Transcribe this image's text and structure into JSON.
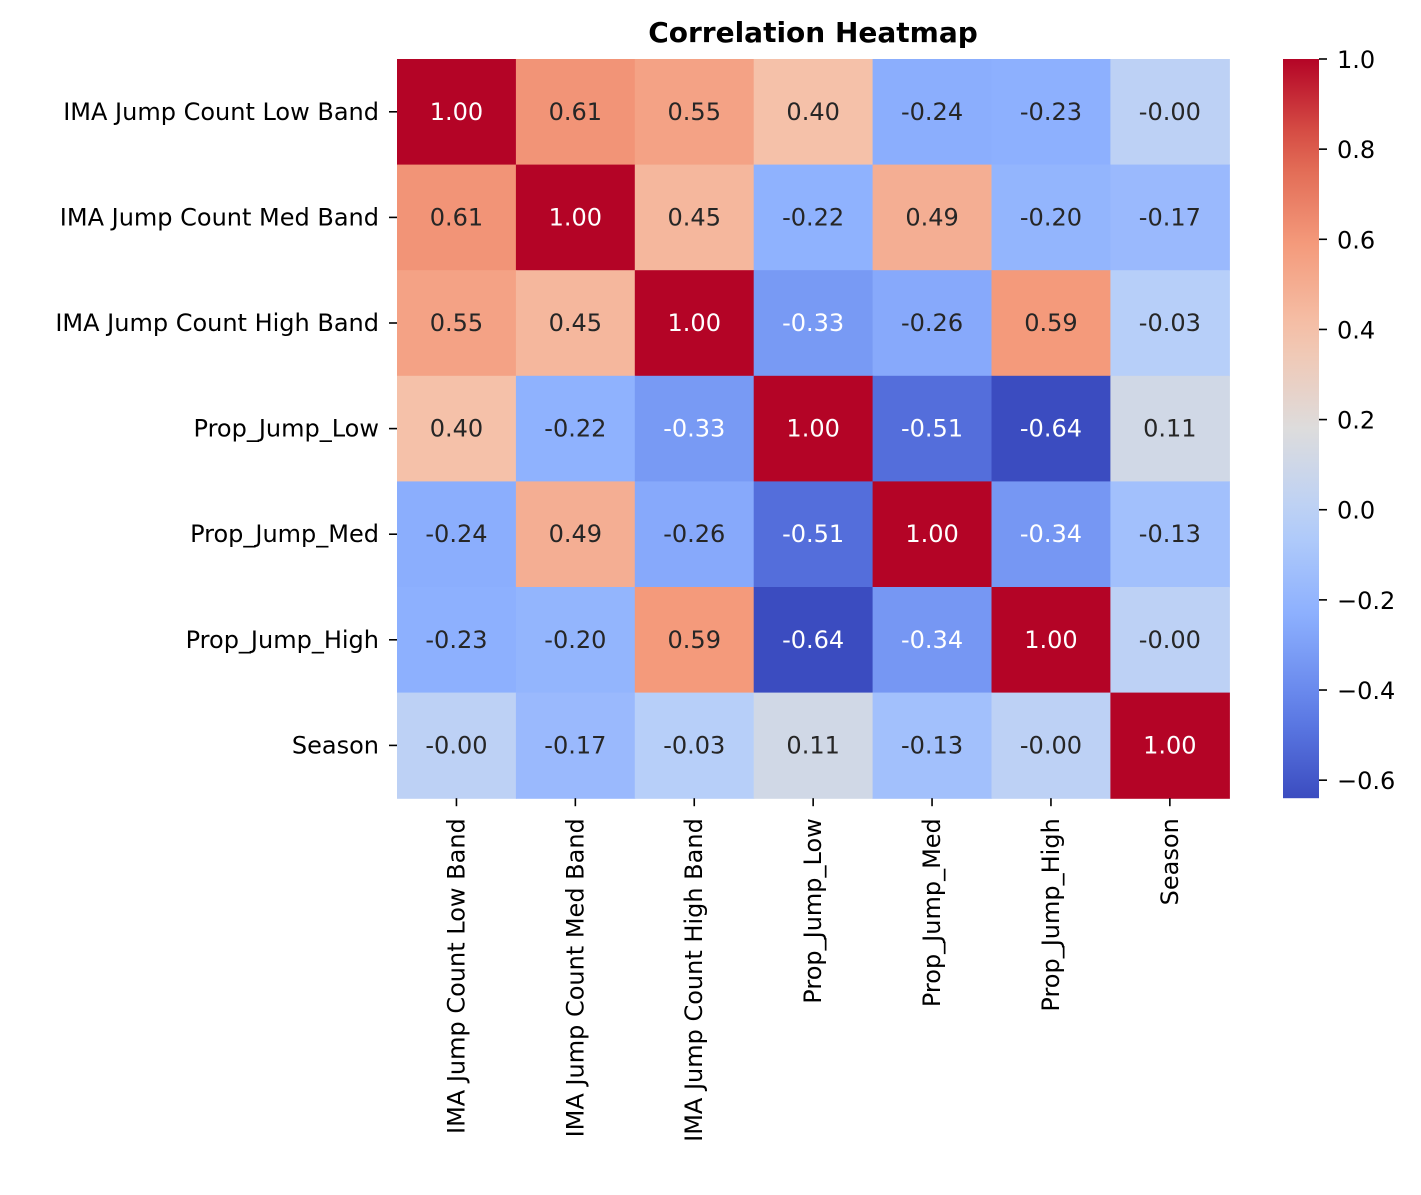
{
  "chart_data": {
    "type": "heatmap",
    "title": "Correlation Heatmap",
    "xlabel": "",
    "ylabel": "",
    "colormap": "coolwarm",
    "row_labels": [
      "IMA Jump Count Low Band",
      "IMA Jump Count Med Band",
      "IMA Jump Count High Band",
      "Prop_Jump_Low",
      "Prop_Jump_Med",
      "Prop_Jump_High",
      "Season"
    ],
    "col_labels": [
      "IMA Jump Count Low Band",
      "IMA Jump Count Med Band",
      "IMA Jump Count High Band",
      "Prop_Jump_Low",
      "Prop_Jump_Med",
      "Prop_Jump_High",
      "Season"
    ],
    "cell_labels": [
      [
        "1.00",
        "0.61",
        "0.55",
        "0.40",
        "-0.24",
        "-0.23",
        "-0.00"
      ],
      [
        "0.61",
        "1.00",
        "0.45",
        "-0.22",
        "0.49",
        "-0.20",
        "-0.17"
      ],
      [
        "0.55",
        "0.45",
        "1.00",
        "-0.33",
        "-0.26",
        "0.59",
        "-0.03"
      ],
      [
        "0.40",
        "-0.22",
        "-0.33",
        "1.00",
        "-0.51",
        "-0.64",
        "0.11"
      ],
      [
        "-0.24",
        "0.49",
        "-0.26",
        "-0.51",
        "1.00",
        "-0.34",
        "-0.13"
      ],
      [
        "-0.23",
        "-0.20",
        "0.59",
        "-0.64",
        "-0.34",
        "1.00",
        "-0.00"
      ],
      [
        "-0.00",
        "-0.17",
        "-0.03",
        "0.11",
        "-0.13",
        "-0.00",
        "1.00"
      ]
    ],
    "values": [
      [
        1.0,
        0.61,
        0.55,
        0.4,
        -0.24,
        -0.23,
        -0.0
      ],
      [
        0.61,
        1.0,
        0.45,
        -0.22,
        0.49,
        -0.2,
        -0.17
      ],
      [
        0.55,
        0.45,
        1.0,
        -0.33,
        -0.26,
        0.59,
        -0.03
      ],
      [
        0.4,
        -0.22,
        -0.33,
        1.0,
        -0.51,
        -0.64,
        0.11
      ],
      [
        -0.24,
        0.49,
        -0.26,
        -0.51,
        1.0,
        -0.34,
        -0.13
      ],
      [
        -0.23,
        -0.2,
        0.59,
        -0.64,
        -0.34,
        1.0,
        -0.0
      ],
      [
        -0.0,
        -0.17,
        -0.03,
        0.11,
        -0.13,
        -0.0,
        1.0
      ]
    ],
    "colorbar": {
      "range": [
        -0.64,
        1.0
      ],
      "tick_values": [
        1.0,
        0.8,
        0.6,
        0.4,
        0.2,
        0.0,
        -0.2,
        -0.4,
        -0.6
      ],
      "tick_labels": [
        "1.0",
        "0.8",
        "0.6",
        "0.4",
        "0.2",
        "0.0",
        "−0.2",
        "−0.4",
        "−0.6"
      ]
    },
    "legend": "colorbar-right",
    "grid": false
  }
}
